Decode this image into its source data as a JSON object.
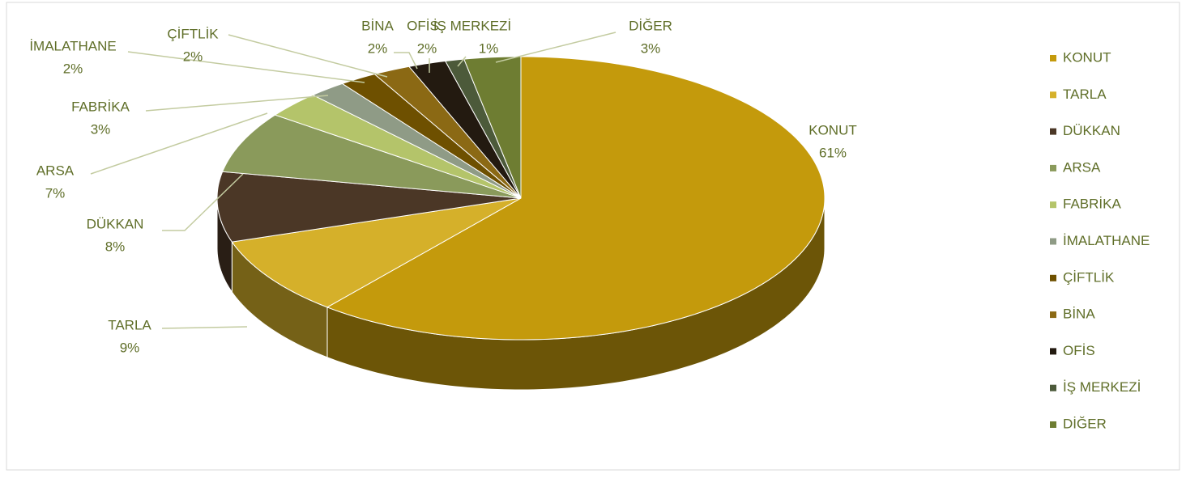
{
  "chart_data": {
    "type": "pie",
    "categories": [
      "KONUT",
      "TARLA",
      "DÜKKAN",
      "ARSA",
      "FABRİKA",
      "İMALATHANE",
      "ÇİFTLİK",
      "BİNA",
      "OFİS",
      "İŞ MERKEZİ",
      "DİĞER"
    ],
    "values": [
      61,
      9,
      8,
      7,
      3,
      2,
      2,
      2,
      2,
      1,
      3
    ],
    "value_labels": [
      "61%",
      "9%",
      "8%",
      "7%",
      "3%",
      "2%",
      "2%",
      "2%",
      "2%",
      "1%",
      "3%"
    ],
    "colors": [
      "#c49a0c",
      "#d5b02a",
      "#4b3726",
      "#8a9a5b",
      "#b4c46a",
      "#8f9b86",
      "#6e5000",
      "#8b6914",
      "#231a10",
      "#4c5a3a",
      "#6e7d32"
    ],
    "legend": "right"
  }
}
